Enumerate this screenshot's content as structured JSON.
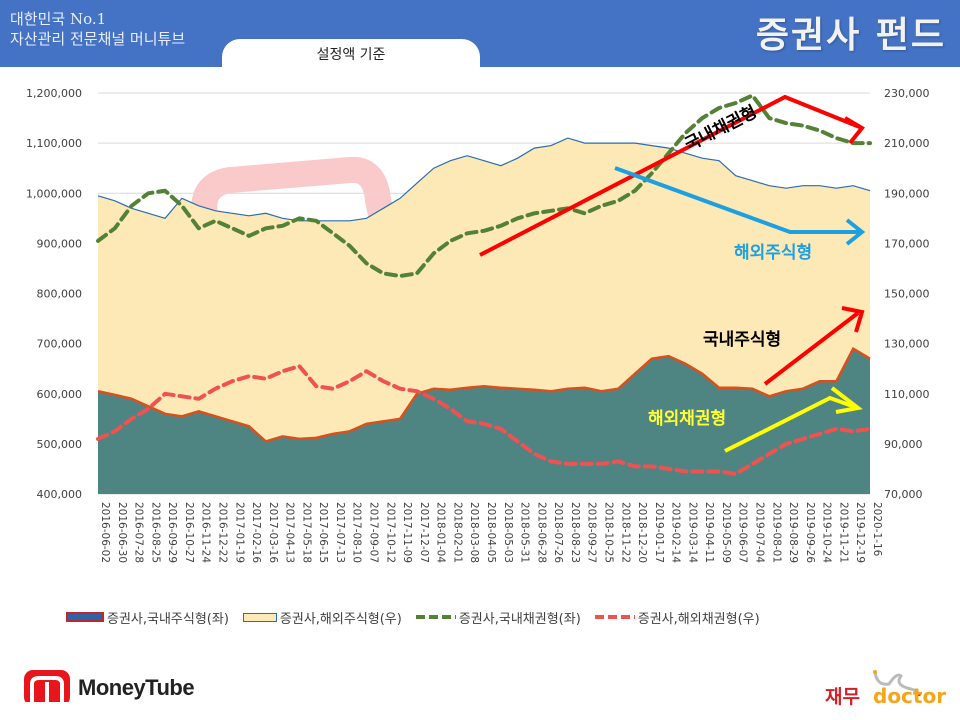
{
  "header": {
    "brand_line1": "대한민국 No.1",
    "brand_line2": "자산관리 전문채널 머니튜브",
    "title": "증권사 펀드",
    "subtitle": "설정액 기준",
    "bg_color": "#4472c4"
  },
  "chart_data": {
    "type": "area",
    "title": "증권사 펀드 (설정액 기준)",
    "categories": [
      "2016-06-02",
      "2016-06-30",
      "2016-07-28",
      "2016-08-25",
      "2016-09-29",
      "2016-10-27",
      "2016-11-24",
      "2016-12-22",
      "2017-01-19",
      "2017-02-16",
      "2017-03-16",
      "2017-04-13",
      "2017-05-18",
      "2017-06-15",
      "2017-07-13",
      "2017-08-10",
      "2017-09-07",
      "2017-10-12",
      "2017-11-09",
      "2017-12-07",
      "2018-01-04",
      "2018-02-01",
      "2018-03-08",
      "2018-04-05",
      "2018-05-03",
      "2018-05-31",
      "2018-06-28",
      "2018-07-26",
      "2018-08-23",
      "2018-09-27",
      "2018-10-25",
      "2018-11-22",
      "2018-12-20",
      "2019-01-17",
      "2019-02-14",
      "2019-03-14",
      "2019-04-11",
      "2019-05-09",
      "2019-06-07",
      "2019-07-04",
      "2019-08-01",
      "2019-08-29",
      "2019-09-26",
      "2019-10-24",
      "2019-11-21",
      "2019-12-19",
      "2020-1-16"
    ],
    "y_left": {
      "label": "좌",
      "ticks": [
        "1,200,000",
        "1,100,000",
        "1,000,000",
        "900,000",
        "800,000",
        "700,000",
        "600,000",
        "500,000",
        "400,000"
      ],
      "range": [
        400000,
        1200000
      ]
    },
    "y_right": {
      "label": "우",
      "ticks": [
        "230,000",
        "210,000",
        "190,000",
        "170,000",
        "150,000",
        "130,000",
        "110,000",
        "90,000",
        "70,000"
      ],
      "range": [
        70000,
        230000
      ]
    },
    "grid": true,
    "legend_position": "bottom",
    "series": [
      {
        "name": "증권사,국내주식형(좌)",
        "axis": "left",
        "style": "area",
        "color": "#4e8583",
        "edge": "#d8501e",
        "values": [
          605000,
          598000,
          590000,
          575000,
          560000,
          555000,
          565000,
          555000,
          545000,
          535000,
          505000,
          515000,
          510000,
          512000,
          520000,
          525000,
          540000,
          545000,
          550000,
          600000,
          610000,
          608000,
          612000,
          615000,
          612000,
          610000,
          608000,
          605000,
          610000,
          612000,
          605000,
          610000,
          640000,
          670000,
          675000,
          660000,
          640000,
          612000,
          612000,
          610000,
          595000,
          605000,
          610000,
          625000,
          625000,
          690000,
          670000
        ]
      },
      {
        "name": "증권사,해외주식형(우)",
        "axis": "right",
        "style": "area",
        "color": "#fde9b5",
        "edge": "#2a6db0",
        "values": [
          189000,
          187000,
          184000,
          182000,
          180000,
          188000,
          185000,
          183000,
          182000,
          181000,
          182000,
          180000,
          179000,
          179000,
          179000,
          179000,
          180000,
          184000,
          188000,
          194000,
          200000,
          203000,
          205000,
          203000,
          201000,
          204000,
          208000,
          209000,
          212000,
          210000,
          210000,
          210000,
          210000,
          209000,
          208000,
          206000,
          204000,
          203000,
          197000,
          195000,
          193000,
          192000,
          193000,
          193000,
          192000,
          193000,
          191000
        ]
      },
      {
        "name": "증권사,국내채권형(좌)",
        "axis": "left",
        "style": "dashed-line",
        "color": "#538135",
        "values": [
          905000,
          930000,
          975000,
          1000000,
          1005000,
          975000,
          930000,
          945000,
          930000,
          915000,
          930000,
          935000,
          950000,
          945000,
          920000,
          895000,
          860000,
          840000,
          835000,
          840000,
          880000,
          905000,
          920000,
          925000,
          935000,
          950000,
          960000,
          965000,
          970000,
          960000,
          975000,
          985000,
          1005000,
          1040000,
          1080000,
          1120000,
          1150000,
          1170000,
          1180000,
          1195000,
          1150000,
          1140000,
          1135000,
          1125000,
          1110000,
          1100000,
          1100000
        ]
      },
      {
        "name": "증권사,해외채권형(우)",
        "axis": "right",
        "style": "dashed-line",
        "color": "#ef5250",
        "values": [
          92000,
          95000,
          100000,
          104000,
          110000,
          109000,
          108000,
          112000,
          115000,
          117000,
          116000,
          119000,
          121000,
          113000,
          112000,
          115000,
          119000,
          115000,
          112000,
          111000,
          108000,
          104000,
          99000,
          98000,
          96000,
          91000,
          86000,
          83000,
          82000,
          82000,
          82000,
          83000,
          81000,
          81000,
          80000,
          79000,
          79000,
          79000,
          78000,
          82000,
          86000,
          90000,
          92000,
          94000,
          96000,
          95000,
          96000
        ]
      }
    ],
    "annotations": [
      {
        "text": "국내채권형",
        "color": "#000000",
        "arrow_color": "#ff0000"
      },
      {
        "text": "해외주식형",
        "color": "#1ea0e0",
        "arrow_color": "#1ea0e0"
      },
      {
        "text": "국내주식형",
        "color": "#000000",
        "arrow_color": "#ff0000"
      },
      {
        "text": "해외채권형",
        "color": "#ffff33",
        "arrow_color": "#ffff00"
      }
    ]
  },
  "legend": [
    {
      "label": "증권사,국내주식형(좌)",
      "swatch": "area-blue-red-border"
    },
    {
      "label": "증권사,해외주식형(우)",
      "swatch": "area-cream"
    },
    {
      "label": "증권사,국내채권형(좌)",
      "swatch": "green-dash"
    },
    {
      "label": "증권사,해외채권형(우)",
      "swatch": "red-dash"
    }
  ],
  "watermark": "MoneyTube",
  "footer": {
    "left_logo": "MoneyTube",
    "right_logo_korean": "재무",
    "right_logo_english": "doctor"
  }
}
